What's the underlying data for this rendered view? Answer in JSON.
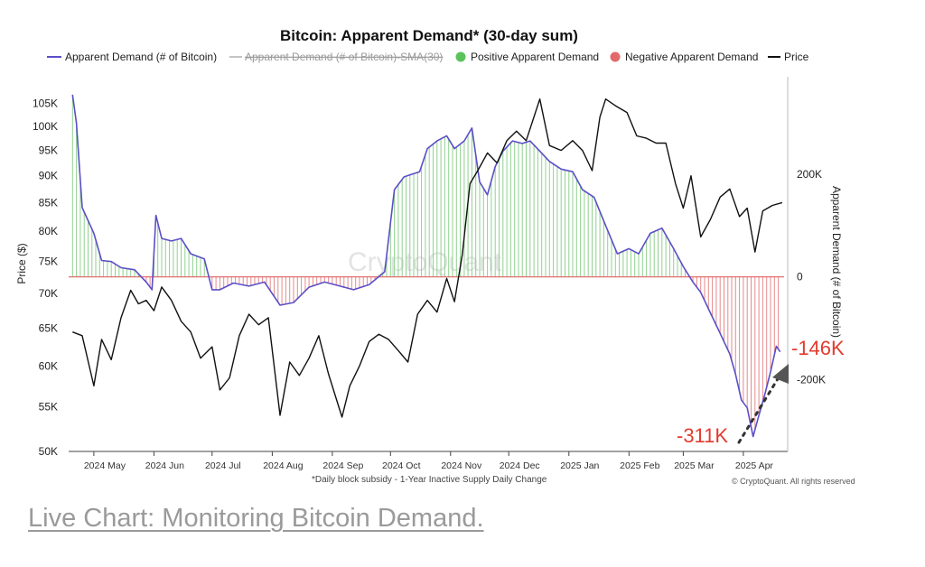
{
  "chart_data": {
    "type": "bar",
    "title": "Bitcoin: Apparent Demand* (30-day sum)",
    "legend": [
      {
        "label": "Apparent Demand (# of Bitcoin)",
        "color": "#5b4fc7",
        "style": "line"
      },
      {
        "label": "Apparent Demand (# of Bitcoin)-SMA(30)",
        "color": "#b8b8b8",
        "style": "line-strikethrough"
      },
      {
        "label": "Positive Apparent Demand",
        "color": "#5cc25c",
        "style": "dot"
      },
      {
        "label": "Negative Apparent Demand",
        "color": "#e26a6a",
        "style": "dot"
      },
      {
        "label": "Price",
        "color": "#111111",
        "style": "line"
      }
    ],
    "legend_position": "top",
    "ylabel_left": "Price ($)",
    "ylabel_right": "Apparent Demand (# of Bitcoin)",
    "footnote": "*Daily block subsidy - 1-Year Inactive Supply Daily Change",
    "watermark": "CryptoQuant",
    "copyright": "© CryptoQuant. All rights reserved",
    "x_ticks": [
      "2024 May",
      "2024 Jun",
      "2024 Jul",
      "2024 Aug",
      "2024 Sep",
      "2024 Oct",
      "2024 Nov",
      "2024 Dec",
      "2025 Jan",
      "2025 Feb",
      "2025 Mar",
      "2025 Apr"
    ],
    "y_left_ticks": [
      "50K",
      "55K",
      "60K",
      "65K",
      "70K",
      "75K",
      "80K",
      "85K",
      "90K",
      "95K",
      "100K",
      "105K"
    ],
    "y_left_scale": "log",
    "y_right_ticks": [
      "200K",
      "0",
      "-200K"
    ],
    "y_left_range": [
      50000,
      108000
    ],
    "y_right_range": [
      -340000,
      390000
    ],
    "grid": false,
    "annotations": [
      {
        "text": "-311K",
        "color": "#e23b2e"
      },
      {
        "text": "-146K",
        "color": "#e23b2e"
      }
    ],
    "apparent_demand": {
      "x": [
        "2024-04-20",
        "2024-04-22",
        "2024-04-25",
        "2024-05-01",
        "2024-05-05",
        "2024-05-10",
        "2024-05-15",
        "2024-05-22",
        "2024-05-28",
        "2024-05-31",
        "2024-06-02",
        "2024-06-05",
        "2024-06-10",
        "2024-06-15",
        "2024-06-20",
        "2024-06-27",
        "2024-07-01",
        "2024-07-05",
        "2024-07-12",
        "2024-07-20",
        "2024-07-28",
        "2024-08-05",
        "2024-08-12",
        "2024-08-20",
        "2024-08-28",
        "2024-09-05",
        "2024-09-12",
        "2024-09-20",
        "2024-09-28",
        "2024-10-03",
        "2024-10-08",
        "2024-10-12",
        "2024-10-16",
        "2024-10-20",
        "2024-10-25",
        "2024-10-30",
        "2024-11-03",
        "2024-11-08",
        "2024-11-12",
        "2024-11-16",
        "2024-11-20",
        "2024-11-24",
        "2024-11-28",
        "2024-12-03",
        "2024-12-08",
        "2024-12-12",
        "2024-12-17",
        "2024-12-22",
        "2024-12-28",
        "2025-01-03",
        "2025-01-08",
        "2025-01-14",
        "2025-01-20",
        "2025-01-26",
        "2025-02-01",
        "2025-02-06",
        "2025-02-12",
        "2025-02-18",
        "2025-02-24",
        "2025-03-01",
        "2025-03-06",
        "2025-03-10",
        "2025-03-15",
        "2025-03-20",
        "2025-03-25",
        "2025-03-28",
        "2025-03-31",
        "2025-04-03",
        "2025-04-06",
        "2025-04-09",
        "2025-04-12",
        "2025-04-15",
        "2025-04-18",
        "2025-04-20"
      ],
      "values": [
        355000,
        300000,
        135000,
        85000,
        32000,
        30000,
        18000,
        14000,
        -10000,
        -25000,
        120000,
        75000,
        70000,
        75000,
        45000,
        35000,
        -25000,
        -25000,
        -12000,
        -18000,
        -10000,
        -55000,
        -50000,
        -20000,
        -10000,
        -18000,
        -25000,
        -15000,
        10000,
        170000,
        195000,
        200000,
        205000,
        250000,
        265000,
        275000,
        250000,
        265000,
        290000,
        185000,
        160000,
        215000,
        245000,
        265000,
        260000,
        265000,
        245000,
        225000,
        210000,
        205000,
        170000,
        155000,
        100000,
        45000,
        55000,
        45000,
        85000,
        95000,
        55000,
        20000,
        -10000,
        -30000,
        -70000,
        -110000,
        -150000,
        -190000,
        -240000,
        -255000,
        -311000,
        -270000,
        -230000,
        -185000,
        -135000,
        -146000
      ]
    },
    "price": {
      "x": [
        "2024-04-20",
        "2024-04-25",
        "2024-05-01",
        "2024-05-05",
        "2024-05-10",
        "2024-05-15",
        "2024-05-20",
        "2024-05-24",
        "2024-05-28",
        "2024-06-01",
        "2024-06-05",
        "2024-06-10",
        "2024-06-15",
        "2024-06-20",
        "2024-06-25",
        "2024-07-01",
        "2024-07-05",
        "2024-07-10",
        "2024-07-15",
        "2024-07-20",
        "2024-07-25",
        "2024-07-30",
        "2024-08-05",
        "2024-08-10",
        "2024-08-15",
        "2024-08-20",
        "2024-08-25",
        "2024-08-30",
        "2024-09-06",
        "2024-09-10",
        "2024-09-15",
        "2024-09-20",
        "2024-09-25",
        "2024-09-30",
        "2024-10-05",
        "2024-10-10",
        "2024-10-15",
        "2024-10-20",
        "2024-10-25",
        "2024-10-30",
        "2024-11-03",
        "2024-11-07",
        "2024-11-11",
        "2024-11-15",
        "2024-11-20",
        "2024-11-25",
        "2024-11-30",
        "2024-12-05",
        "2024-12-10",
        "2024-12-17",
        "2024-12-22",
        "2024-12-28",
        "2025-01-03",
        "2025-01-08",
        "2025-01-13",
        "2025-01-17",
        "2025-01-20",
        "2025-01-25",
        "2025-01-31",
        "2025-02-05",
        "2025-02-10",
        "2025-02-15",
        "2025-02-20",
        "2025-02-25",
        "2025-03-01",
        "2025-03-05",
        "2025-03-10",
        "2025-03-15",
        "2025-03-20",
        "2025-03-25",
        "2025-03-30",
        "2025-04-03",
        "2025-04-07",
        "2025-04-11",
        "2025-04-16",
        "2025-04-21"
      ],
      "values": [
        64500,
        64000,
        57500,
        63500,
        60800,
        66500,
        70500,
        68500,
        69000,
        67500,
        71000,
        69000,
        66000,
        64500,
        61000,
        62500,
        57000,
        58500,
        64000,
        67000,
        65500,
        66500,
        54000,
        60500,
        58800,
        61000,
        64000,
        59000,
        53800,
        57500,
        60000,
        63200,
        64200,
        63500,
        62000,
        60500,
        67000,
        69000,
        67300,
        72300,
        68800,
        76000,
        88500,
        91000,
        94500,
        92500,
        97000,
        99000,
        97000,
        106000,
        96000,
        95000,
        97000,
        95000,
        91000,
        102000,
        106000,
        104500,
        103000,
        98000,
        97500,
        96500,
        96500,
        88500,
        84000,
        90000,
        79000,
        82000,
        86000,
        87500,
        82500,
        84000,
        76500,
        83500,
        84500,
        85000
      ]
    }
  },
  "caption": "Live Chart: Monitoring Bitcoin Demand."
}
